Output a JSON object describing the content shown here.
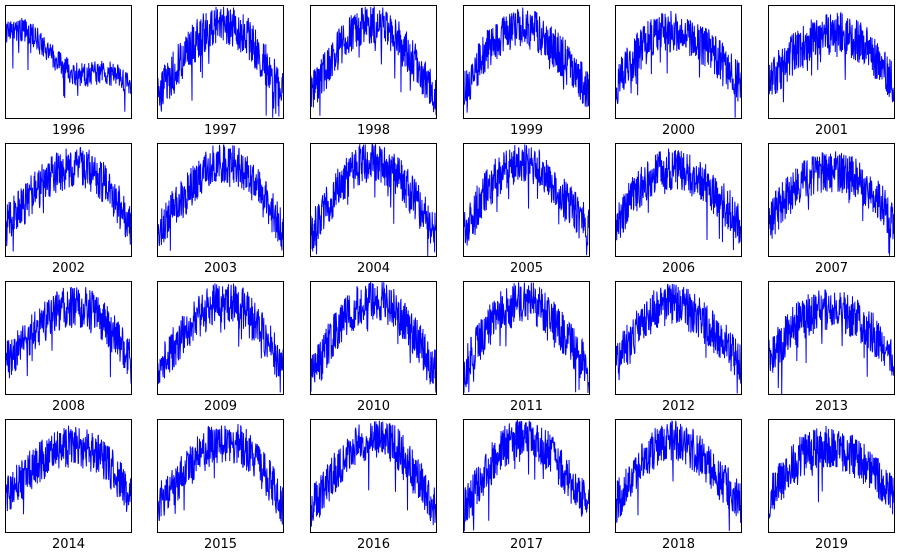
{
  "chart_data": {
    "type": "line",
    "layout": "small-multiples",
    "rows": 4,
    "cols": 6,
    "grid": false,
    "axes_ticks_visible": false,
    "line_color": "#0000ff",
    "panels": [
      {
        "year": "1996",
        "label": "1996"
      },
      {
        "year": "1997",
        "label": "1997"
      },
      {
        "year": "1998",
        "label": "1998"
      },
      {
        "year": "1999",
        "label": "1999"
      },
      {
        "year": "2000",
        "label": "2000"
      },
      {
        "year": "2001",
        "label": "2001"
      },
      {
        "year": "2002",
        "label": "2002"
      },
      {
        "year": "2003",
        "label": "2003"
      },
      {
        "year": "2004",
        "label": "2004"
      },
      {
        "year": "2005",
        "label": "2005"
      },
      {
        "year": "2006",
        "label": "2006"
      },
      {
        "year": "2007",
        "label": "2007"
      },
      {
        "year": "2008",
        "label": "2008"
      },
      {
        "year": "2009",
        "label": "2009"
      },
      {
        "year": "2010",
        "label": "2010"
      },
      {
        "year": "2011",
        "label": "2011"
      },
      {
        "year": "2012",
        "label": "2012"
      },
      {
        "year": "2013",
        "label": "2013"
      },
      {
        "year": "2014",
        "label": "2014"
      },
      {
        "year": "2015",
        "label": "2015"
      },
      {
        "year": "2016",
        "label": "2016"
      },
      {
        "year": "2017",
        "label": "2017"
      },
      {
        "year": "2018",
        "label": "2018"
      },
      {
        "year": "2019",
        "label": "2019"
      }
    ]
  }
}
